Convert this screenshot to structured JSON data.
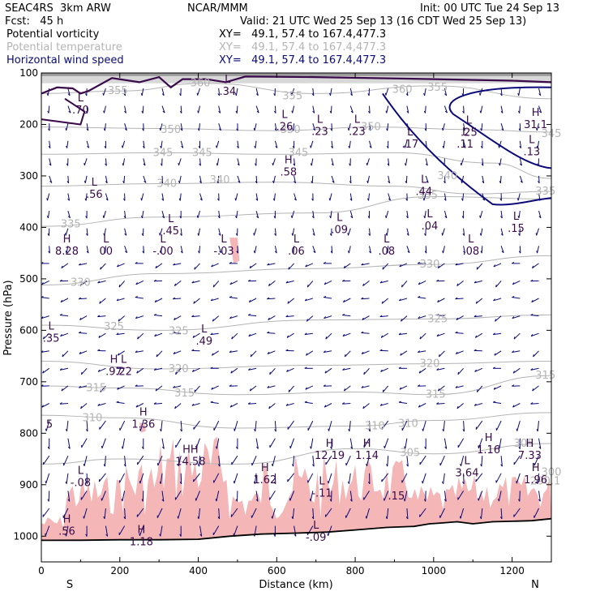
{
  "header": {
    "model": "SEAC4RS  3km ARW",
    "center": "NCAR/MMM",
    "init": "Init: 00 UTC Tue 24 Sep 13",
    "fcst": "Fcst:   45 h",
    "valid": "Valid: 21 UTC Wed 25 Sep 13 (16 CDT Wed 25 Sep 13)",
    "fields": [
      {
        "name": "Potential vorticity",
        "xy": "XY=   49.1, 57.4 to 167.4,477.3",
        "color": "#000000"
      },
      {
        "name": "Potential temperature",
        "xy": "XY=   49.1, 57.4 to 167.4,477.3",
        "color": "#b4b4b4"
      },
      {
        "name": "Horizontal wind speed",
        "xy": "XY=   49.1, 57.4 to 167.4,477.3",
        "color": "#0a0a7a"
      }
    ]
  },
  "chart_data": {
    "type": "cross-section",
    "xlabel": "Distance (km)",
    "ylabel": "Pressure (hPa)",
    "xlim": [
      0,
      1300
    ],
    "ylim": [
      1050,
      100
    ],
    "xticks": [
      "0",
      "200",
      "400",
      "600",
      "800",
      "1000",
      "1200"
    ],
    "yticks": [
      "100",
      "200",
      "300",
      "400",
      "500",
      "600",
      "700",
      "800",
      "900",
      "1000"
    ],
    "endpoints": {
      "left": "S",
      "right": "N"
    },
    "colors": {
      "pv_fill": "#f4b6b6",
      "theta": "#b4b4b4",
      "wind": "#0a0a7a",
      "pv_contour": "#3a0a4a",
      "terrain": "#000000"
    },
    "theta_labels": [
      {
        "x": 195,
        "p": 135,
        "t": "355"
      },
      {
        "x": 405,
        "p": 120,
        "t": "360"
      },
      {
        "x": 640,
        "p": 145,
        "t": "355"
      },
      {
        "x": 920,
        "p": 132,
        "t": "360"
      },
      {
        "x": 1010,
        "p": 128,
        "t": "355"
      },
      {
        "x": 330,
        "p": 210,
        "t": "350"
      },
      {
        "x": 635,
        "p": 210,
        "t": "350"
      },
      {
        "x": 840,
        "p": 205,
        "t": "350"
      },
      {
        "x": 310,
        "p": 255,
        "t": "345"
      },
      {
        "x": 410,
        "p": 255,
        "t": "345"
      },
      {
        "x": 655,
        "p": 255,
        "t": "345"
      },
      {
        "x": 1035,
        "p": 300,
        "t": "340"
      },
      {
        "x": 1300,
        "p": 218,
        "t": "345"
      },
      {
        "x": 320,
        "p": 315,
        "t": "340"
      },
      {
        "x": 455,
        "p": 308,
        "t": "340"
      },
      {
        "x": 985,
        "p": 338,
        "t": "335"
      },
      {
        "x": 1285,
        "p": 330,
        "t": "335"
      },
      {
        "x": 75,
        "p": 394,
        "t": "335"
      },
      {
        "x": 990,
        "p": 472,
        "t": "330"
      },
      {
        "x": 100,
        "p": 507,
        "t": "330"
      },
      {
        "x": 1010,
        "p": 578,
        "t": "325"
      },
      {
        "x": 185,
        "p": 593,
        "t": "325"
      },
      {
        "x": 350,
        "p": 602,
        "t": "325"
      },
      {
        "x": 350,
        "p": 675,
        "t": "320"
      },
      {
        "x": 990,
        "p": 665,
        "t": "320"
      },
      {
        "x": 1285,
        "p": 688,
        "t": "315"
      },
      {
        "x": 140,
        "p": 712,
        "t": "315"
      },
      {
        "x": 365,
        "p": 722,
        "t": "315"
      },
      {
        "x": 1005,
        "p": 725,
        "t": "315"
      },
      {
        "x": 130,
        "p": 770,
        "t": "310"
      },
      {
        "x": 850,
        "p": 786,
        "t": "310"
      },
      {
        "x": 935,
        "p": 781,
        "t": "310"
      },
      {
        "x": 940,
        "p": 838,
        "t": "305"
      },
      {
        "x": 1230,
        "p": 820,
        "t": "305"
      },
      {
        "x": 1300,
        "p": 876,
        "t": "300"
      },
      {
        "x": 1285,
        "p": 893,
        "t": "290.1"
      }
    ],
    "extrema": [
      {
        "x": 100,
        "p": 160,
        "k": "L",
        "v": ".70"
      },
      {
        "x": 475,
        "p": 124,
        "k": "L",
        "v": ".34"
      },
      {
        "x": 620,
        "p": 192,
        "k": "L",
        "v": ".26"
      },
      {
        "x": 710,
        "p": 202,
        "k": "L",
        "v": ".23"
      },
      {
        "x": 805,
        "p": 202,
        "k": "L",
        "v": ".23"
      },
      {
        "x": 1260,
        "p": 188,
        "k": "H",
        "v": "31.1"
      },
      {
        "x": 1090,
        "p": 203,
        "k": "L",
        "v": ".25"
      },
      {
        "x": 940,
        "p": 226,
        "k": "L",
        "v": ".17"
      },
      {
        "x": 1080,
        "p": 226,
        "k": "L",
        "v": ".11"
      },
      {
        "x": 1250,
        "p": 241,
        "k": "L",
        "v": ".13"
      },
      {
        "x": 630,
        "p": 280,
        "k": "H",
        "v": ".58"
      },
      {
        "x": 135,
        "p": 324,
        "k": "L",
        "v": ".56"
      },
      {
        "x": 975,
        "p": 318,
        "k": "L",
        "v": ".44"
      },
      {
        "x": 330,
        "p": 395,
        "k": "L",
        "v": ".45"
      },
      {
        "x": 760,
        "p": 392,
        "k": "L",
        "v": ".09"
      },
      {
        "x": 990,
        "p": 385,
        "k": "L",
        "v": ".04"
      },
      {
        "x": 1210,
        "p": 390,
        "k": "L",
        "v": ".15"
      },
      {
        "x": 65,
        "p": 434,
        "k": "H",
        "v": "8.28"
      },
      {
        "x": 165,
        "p": 434,
        "k": "L",
        "v": "00"
      },
      {
        "x": 310,
        "p": 434,
        "k": "L",
        "v": "-.00"
      },
      {
        "x": 465,
        "p": 434,
        "k": "L",
        "v": "-.03"
      },
      {
        "x": 650,
        "p": 434,
        "k": "L",
        "v": ".06"
      },
      {
        "x": 880,
        "p": 434,
        "k": "L",
        "v": ".08"
      },
      {
        "x": 1095,
        "p": 434,
        "k": "L",
        "v": ".08"
      },
      {
        "x": 25,
        "p": 603,
        "k": "L",
        "v": ".35"
      },
      {
        "x": 415,
        "p": 609,
        "k": "L",
        "v": ".49"
      },
      {
        "x": 185,
        "p": 668,
        "k": "H",
        "v": ".97"
      },
      {
        "x": 210,
        "p": 668,
        "k": "L",
        "v": ".22"
      },
      {
        "x": 260,
        "p": 770,
        "k": "H",
        "v": "1.36"
      },
      {
        "x": 0,
        "p": 770,
        "k": "",
        "v": "5"
      },
      {
        "x": 735,
        "p": 831,
        "k": "H",
        "v": "12.19"
      },
      {
        "x": 830,
        "p": 831,
        "k": "H",
        "v": "1.14"
      },
      {
        "x": 1140,
        "p": 820,
        "k": "H",
        "v": "1.16"
      },
      {
        "x": 1245,
        "p": 831,
        "k": "H",
        "v": "7.33"
      },
      {
        "x": 380,
        "p": 843,
        "k": "HH",
        "v": "14.58"
      },
      {
        "x": 570,
        "p": 878,
        "k": "H",
        "v": "1.62"
      },
      {
        "x": 1085,
        "p": 865,
        "k": "L",
        "v": "3.64"
      },
      {
        "x": 1260,
        "p": 878,
        "k": "H",
        "v": "1.96"
      },
      {
        "x": 100,
        "p": 884,
        "k": "L",
        "v": "-.08"
      },
      {
        "x": 715,
        "p": 904,
        "k": "L",
        "v": "-.11"
      },
      {
        "x": 905,
        "p": 910,
        "k": "",
        "v": ".15"
      },
      {
        "x": 65,
        "p": 978,
        "k": "H",
        "v": ".56"
      },
      {
        "x": 255,
        "p": 999,
        "k": "H",
        "v": "1.18"
      },
      {
        "x": 700,
        "p": 990,
        "k": "L",
        "v": "-.09"
      }
    ],
    "terrain": [
      [
        0,
        1008
      ],
      [
        100,
        1008
      ],
      [
        200,
        1007
      ],
      [
        300,
        1007
      ],
      [
        400,
        1006
      ],
      [
        480,
        1000
      ],
      [
        560,
        996
      ],
      [
        650,
        994
      ],
      [
        730,
        992
      ],
      [
        800,
        988
      ],
      [
        880,
        983
      ],
      [
        950,
        981
      ],
      [
        990,
        976
      ],
      [
        1010,
        975
      ],
      [
        1060,
        972
      ],
      [
        1100,
        976
      ],
      [
        1150,
        972
      ],
      [
        1200,
        971
      ],
      [
        1250,
        970
      ],
      [
        1300,
        966
      ]
    ]
  }
}
